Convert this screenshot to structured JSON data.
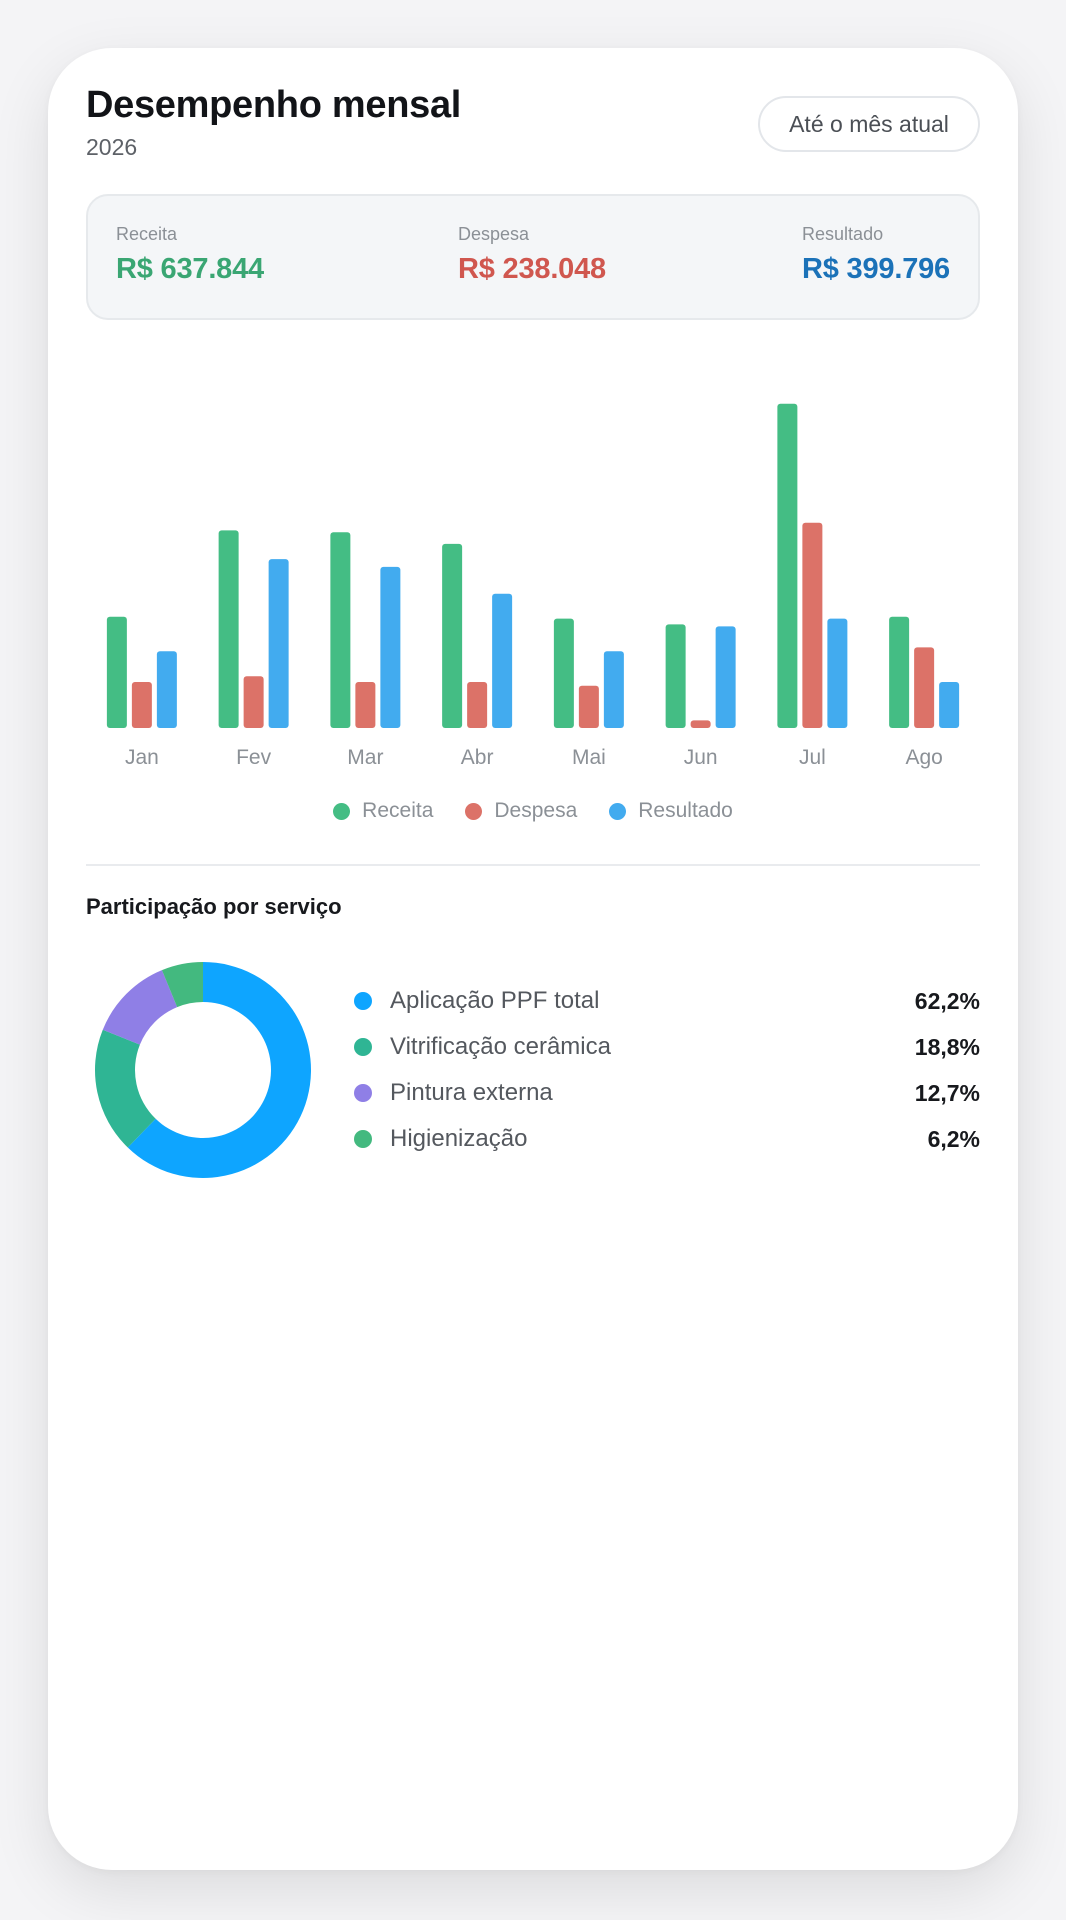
{
  "header": {
    "title": "Desempenho mensal",
    "year": "2026",
    "period_button": "Até o mês atual"
  },
  "summary": {
    "receita": {
      "label": "Receita",
      "value": "R$ 637.844",
      "color": "#3aa673"
    },
    "despesa": {
      "label": "Despesa",
      "value": "R$ 238.048",
      "color": "#d0574f"
    },
    "resultado": {
      "label": "Resultado",
      "value": "R$ 399.796",
      "color": "#1b72b8"
    }
  },
  "chart_data": {
    "type": "bar",
    "categories": [
      "Jan",
      "Fev",
      "Mar",
      "Abr",
      "Mai",
      "Jun",
      "Jul",
      "Ago"
    ],
    "series": [
      {
        "name": "Receita",
        "color": "#44bd84",
        "values": [
          58,
          103,
          102,
          96,
          57,
          54,
          169,
          58
        ]
      },
      {
        "name": "Despesa",
        "color": "#dc7268",
        "values": [
          24,
          27,
          24,
          24,
          22,
          4,
          107,
          42
        ]
      },
      {
        "name": "Resultado",
        "color": "#42abef",
        "values": [
          40,
          88,
          84,
          70,
          40,
          53,
          57,
          24
        ]
      }
    ],
    "ylim": [
      0,
      172
    ],
    "grid": false,
    "legend": "bottom"
  },
  "services": {
    "title": "Participação por serviço",
    "items": [
      {
        "label": "Aplicação PPF total",
        "pct_label": "62,2%",
        "value": 62.2,
        "color": "#0ea5ff"
      },
      {
        "label": "Vitrificação cerâmica",
        "pct_label": "18,8%",
        "value": 18.8,
        "color": "#2fb594"
      },
      {
        "label": "Pintura externa",
        "pct_label": "12,7%",
        "value": 12.7,
        "color": "#8f7fe6"
      },
      {
        "label": "Higienização",
        "pct_label": "6,2%",
        "value": 6.2,
        "color": "#43b97f"
      }
    ]
  }
}
